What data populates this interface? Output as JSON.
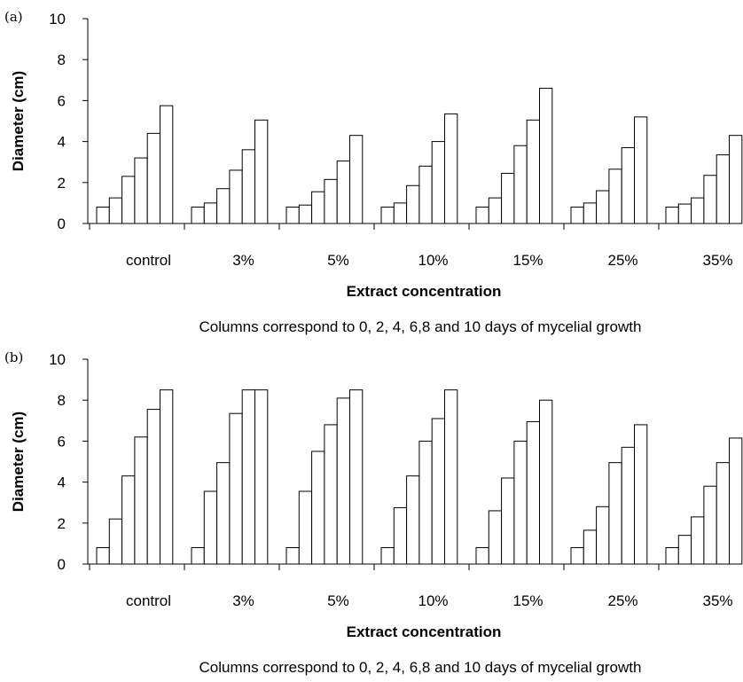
{
  "chart_data": [
    {
      "panel": "(a)",
      "type": "bar",
      "ylabel": "Diameter (cm)",
      "xlabel": "Extract concentration",
      "note": "Columns correspond to 0, 2, 4, 6,8 and 10 days of mycelial growth",
      "ylim": [
        0,
        10
      ],
      "yticks": [
        "0",
        "2",
        "4",
        "6",
        "8",
        "10"
      ],
      "categories": [
        "control",
        "3%",
        "5%",
        "10%",
        "15%",
        "25%",
        "35%"
      ],
      "values": [
        [
          0.8,
          1.25,
          2.3,
          3.2,
          4.4,
          5.75
        ],
        [
          0.8,
          1.0,
          1.7,
          2.6,
          3.6,
          5.05
        ],
        [
          0.8,
          0.9,
          1.55,
          2.15,
          3.05,
          4.3
        ],
        [
          0.8,
          1.0,
          1.85,
          2.8,
          4.0,
          5.35
        ],
        [
          0.8,
          1.25,
          2.45,
          3.8,
          5.05,
          6.6
        ],
        [
          0.8,
          1.0,
          1.6,
          2.65,
          3.7,
          5.2
        ],
        [
          0.8,
          0.95,
          1.25,
          2.35,
          3.35,
          4.3
        ]
      ]
    },
    {
      "panel": "(b)",
      "type": "bar",
      "ylabel": "Diameter (cm)",
      "xlabel": "Extract concentration",
      "note": "Columns correspond to 0, 2, 4, 6,8 and 10 days of mycelial growth",
      "ylim": [
        0,
        10
      ],
      "yticks": [
        "0",
        "2",
        "4",
        "6",
        "8",
        "10"
      ],
      "categories": [
        "control",
        "3%",
        "5%",
        "10%",
        "15%",
        "25%",
        "35%"
      ],
      "values": [
        [
          0.8,
          2.2,
          4.3,
          6.2,
          7.55,
          8.5
        ],
        [
          0.8,
          3.55,
          4.95,
          7.35,
          8.5,
          8.5
        ],
        [
          0.8,
          3.55,
          5.5,
          6.8,
          8.1,
          8.5
        ],
        [
          0.8,
          2.75,
          4.3,
          6.0,
          7.1,
          8.5
        ],
        [
          0.8,
          2.6,
          4.2,
          6.0,
          6.95,
          8.0
        ],
        [
          0.8,
          1.65,
          2.8,
          4.95,
          5.7,
          6.8
        ],
        [
          0.8,
          1.4,
          2.3,
          3.8,
          4.95,
          6.15
        ]
      ]
    }
  ]
}
